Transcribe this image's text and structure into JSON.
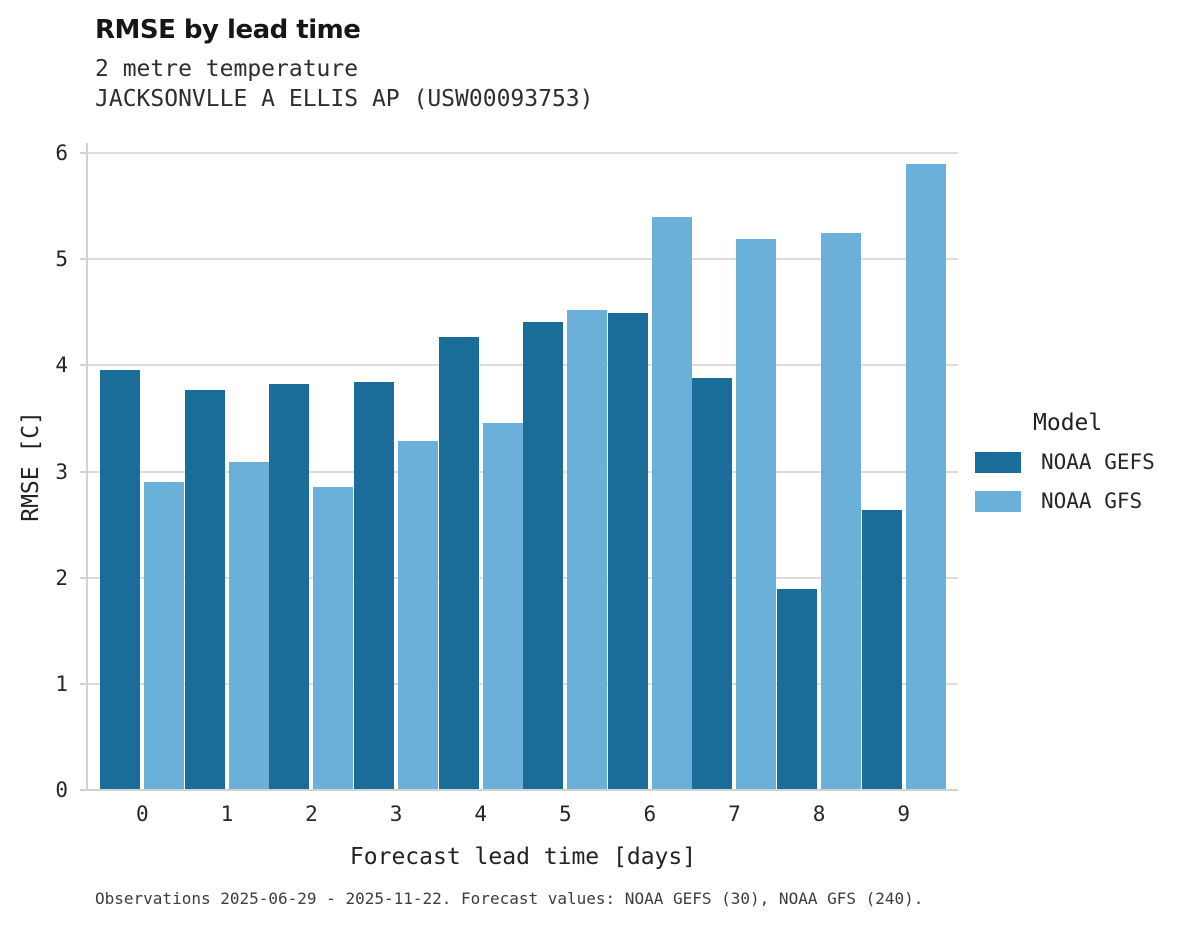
{
  "chart_data": {
    "type": "bar",
    "title": "RMSE by lead time",
    "subtitle_lines": [
      "2 metre temperature",
      "JACKSONVLLE A ELLIS AP (USW00093753)"
    ],
    "xlabel": "Forecast lead time [days]",
    "ylabel": "RMSE [C]",
    "categories": [
      "0",
      "1",
      "2",
      "3",
      "4",
      "5",
      "6",
      "7",
      "8",
      "9"
    ],
    "series": [
      {
        "name": "NOAA GEFS",
        "color": "#1a6d99",
        "values": [
          3.96,
          3.77,
          3.82,
          3.84,
          4.27,
          4.41,
          4.49,
          3.88,
          1.89,
          2.64
        ]
      },
      {
        "name": "NOAA GFS",
        "color": "#6bb0d8",
        "values": [
          2.9,
          3.09,
          2.85,
          3.29,
          3.46,
          4.52,
          5.4,
          5.19,
          5.25,
          5.9
        ]
      }
    ],
    "ylim": [
      0,
      6
    ],
    "yticks": [
      "0",
      "1",
      "2",
      "3",
      "4",
      "5",
      "6"
    ],
    "grid": true,
    "legend_position": "right",
    "legend": {
      "title": "Model"
    },
    "caption": "Observations 2025-06-29 - 2025-11-22. Forecast values: NOAA GEFS (30), NOAA GFS (240)."
  },
  "colors": {
    "gridline": "#dcdcdc",
    "spine": "#d2d2d2",
    "gefs": "#1a6d99",
    "gfs": "#6bb0d8"
  }
}
